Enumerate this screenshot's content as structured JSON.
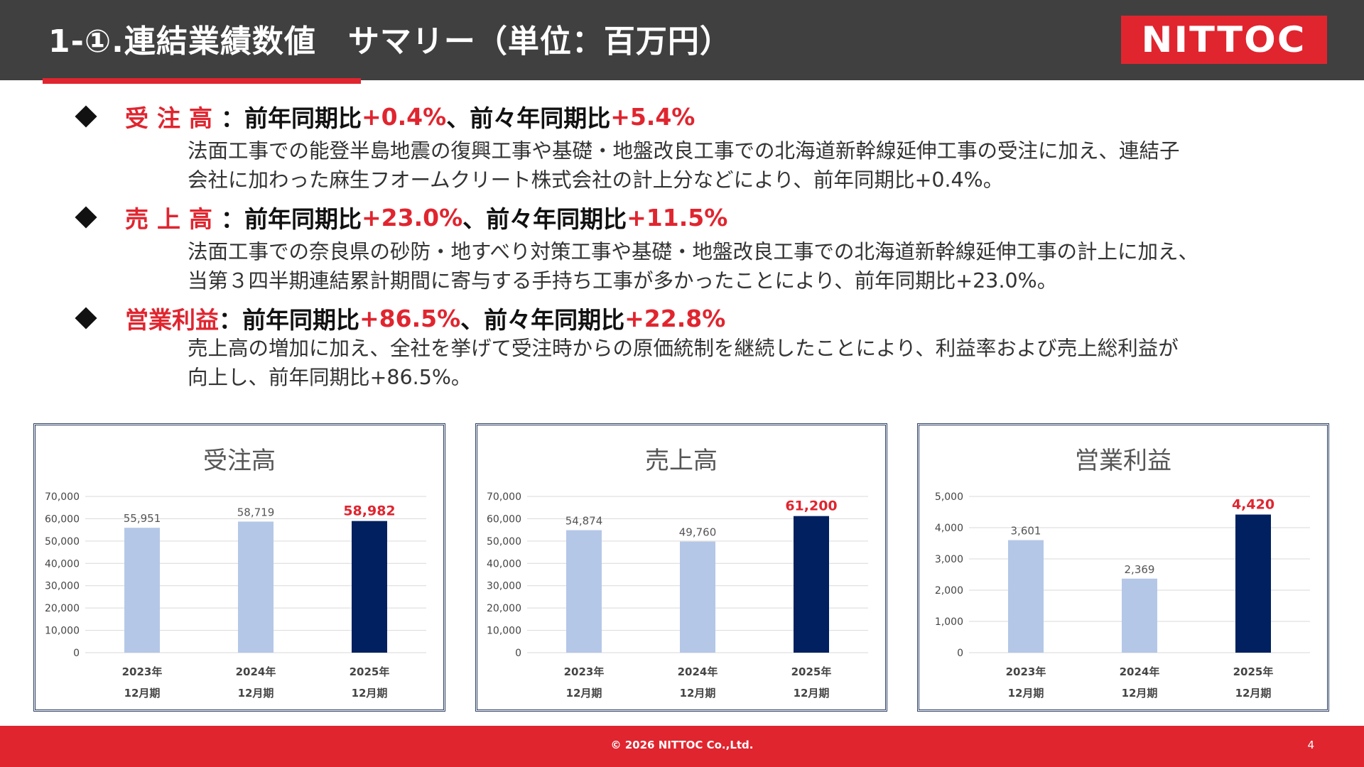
{
  "header": {
    "title": "1-①.連結業績数値　サマリー（単位：百万円）",
    "logo": "NITTOC"
  },
  "bullets": [
    {
      "label": "受注高",
      "colon": "：",
      "prefix1": "前年同期比",
      "value1": "+0.4%",
      "sep": "、",
      "prefix2": "前々年同期比",
      "value2": "+5.4%",
      "desc_line1": "法面工事での能登半島地震の復興工事や基礎・地盤改良工事での北海道新幹線延伸工事の受注に加え、連結子",
      "desc_line2": "会社に加わった麻生フオームクリート株式会社の計上分などにより、前年同期比+0.4%。"
    },
    {
      "label": "売上高",
      "colon": "：",
      "prefix1": "前年同期比",
      "value1": "+23.0%",
      "sep": "、",
      "prefix2": "前々年同期比",
      "value2": "+11.5%",
      "desc_line1": "法面工事での奈良県の砂防・地すべり対策工事や基礎・地盤改良工事での北海道新幹線延伸工事の計上に加え、",
      "desc_line2": "当第３四半期連結累計期間に寄与する手持ち工事が多かったことにより、前年同期比+23.0%。"
    },
    {
      "label": "営業利益",
      "colon": "：",
      "prefix1": "前年同期比",
      "value1": "+86.5%",
      "sep": "、",
      "prefix2": "前々年同期比",
      "value2": "+22.8%",
      "desc_line1": "売上高の増加に加え、全社を挙げて受注時からの原価統制を継続したことにより、利益率および売上総利益が",
      "desc_line2": "向上し、前年同期比+86.5%。"
    }
  ],
  "colors": {
    "accent_red": "#e0252f",
    "bar_light": "#b4c7e7",
    "bar_dark": "#002060",
    "header_bg": "#404040"
  },
  "chart_data": [
    {
      "type": "bar",
      "title": "受注高",
      "categories": [
        [
          "2023年",
          "12月期"
        ],
        [
          "2024年",
          "12月期"
        ],
        [
          "2025年",
          "12月期"
        ]
      ],
      "values": [
        55951,
        58719,
        58982
      ],
      "value_labels": [
        "55,951",
        "58,719",
        "58,982"
      ],
      "ylim": [
        0,
        70000
      ],
      "yticks": [
        0,
        10000,
        20000,
        30000,
        40000,
        50000,
        60000,
        70000
      ],
      "ytick_labels": [
        "0",
        "10,000",
        "20,000",
        "30,000",
        "40,000",
        "50,000",
        "60,000",
        "70,000"
      ],
      "highlight_index": 2,
      "grid": true
    },
    {
      "type": "bar",
      "title": "売上高",
      "categories": [
        [
          "2023年",
          "12月期"
        ],
        [
          "2024年",
          "12月期"
        ],
        [
          "2025年",
          "12月期"
        ]
      ],
      "values": [
        54874,
        49760,
        61200
      ],
      "value_labels": [
        "54,874",
        "49,760",
        "61,200"
      ],
      "ylim": [
        0,
        70000
      ],
      "yticks": [
        0,
        10000,
        20000,
        30000,
        40000,
        50000,
        60000,
        70000
      ],
      "ytick_labels": [
        "0",
        "10,000",
        "20,000",
        "30,000",
        "40,000",
        "50,000",
        "60,000",
        "70,000"
      ],
      "highlight_index": 2,
      "grid": true
    },
    {
      "type": "bar",
      "title": "営業利益",
      "categories": [
        [
          "2023年",
          "12月期"
        ],
        [
          "2024年",
          "12月期"
        ],
        [
          "2025年",
          "12月期"
        ]
      ],
      "values": [
        3601,
        2369,
        4420
      ],
      "value_labels": [
        "3,601",
        "2,369",
        "4,420"
      ],
      "ylim": [
        0,
        5000
      ],
      "yticks": [
        0,
        1000,
        2000,
        3000,
        4000,
        5000
      ],
      "ytick_labels": [
        "0",
        "1,000",
        "2,000",
        "3,000",
        "4,000",
        "5,000"
      ],
      "highlight_index": 2,
      "grid": true
    }
  ],
  "footer": {
    "copyright": "© 2026 NITTOC Co.,Ltd.",
    "page_number": "4"
  }
}
